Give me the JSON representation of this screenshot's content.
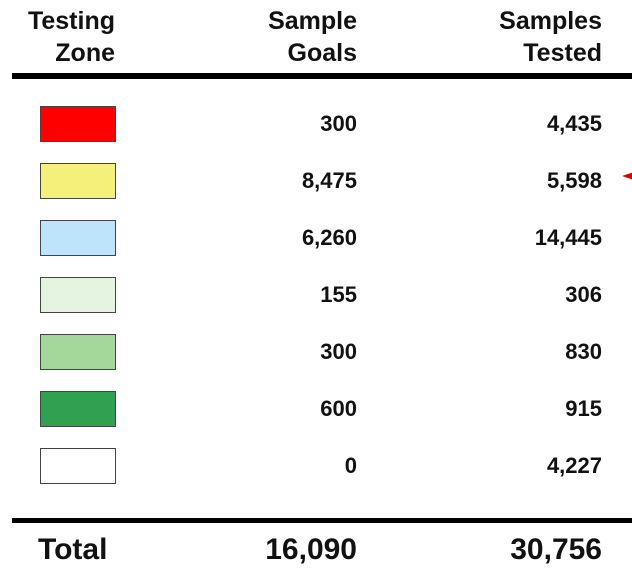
{
  "table": {
    "header": [
      [
        "Testing",
        "Zone"
      ],
      [
        "Sample",
        "Goals"
      ],
      [
        "Samples",
        "Tested"
      ]
    ],
    "rows": [
      {
        "color": "#ff0000",
        "goals": "300",
        "tested": "4,435"
      },
      {
        "color": "#f5f07a",
        "goals": "8,475",
        "tested": "5,598"
      },
      {
        "color": "#bde4fb",
        "goals": "6,260",
        "tested": "14,445"
      },
      {
        "color": "#e4f4e0",
        "goals": "155",
        "tested": "306"
      },
      {
        "color": "#a3d89a",
        "goals": "300",
        "tested": "830"
      },
      {
        "color": "#30a150",
        "goals": "600",
        "tested": "915"
      },
      {
        "color": "#ffffff",
        "goals": "0",
        "tested": "4,227"
      }
    ],
    "total": {
      "label": "Total",
      "goals": "16,090",
      "tested": "30,756"
    }
  }
}
